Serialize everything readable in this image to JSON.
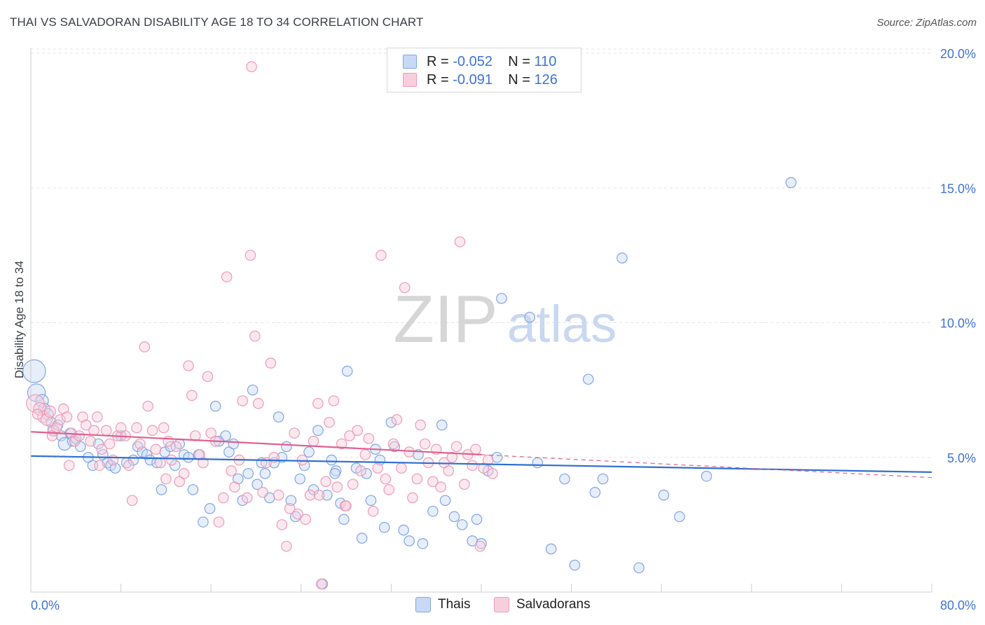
{
  "chart_data": {
    "type": "scatter",
    "title": "THAI VS SALVADORAN DISABILITY AGE 18 TO 34 CORRELATION CHART",
    "source": "Source: ZipAtlas.com",
    "ylabel": "Disability Age 18 to 34",
    "xlim": [
      0,
      80
    ],
    "ylim": [
      0,
      20
    ],
    "x_tick_labels": [
      "0.0%",
      "80.0%"
    ],
    "y_ticks": [
      5,
      10,
      15,
      20
    ],
    "y_tick_labels": [
      "5.0%",
      "10.0%",
      "15.0%",
      "20.0%"
    ],
    "watermark": {
      "zip": "ZIP",
      "atlas": "atlas"
    },
    "grid": true,
    "legend_top": [
      {
        "r_label": "R =",
        "r_value": "-0.052",
        "n_label": "N =",
        "n_value": "110"
      },
      {
        "r_label": "R =",
        "r_value": "-0.091",
        "n_label": "N =",
        "n_value": "126"
      }
    ],
    "series": [
      {
        "name": "Thais",
        "color": "#7ea6e6",
        "fill": "#c9d9f5",
        "line_color": "#2f6fd0",
        "trend": {
          "x": [
            0,
            80
          ],
          "y": [
            5.05,
            4.45
          ]
        },
        "points": [
          [
            0.3,
            8.2,
            1.8
          ],
          [
            0.5,
            7.4,
            1.4
          ],
          [
            1.0,
            7.1,
            1.0
          ],
          [
            1.2,
            6.8,
            0.9
          ],
          [
            1.5,
            6.6,
            0.9
          ],
          [
            1.8,
            6.3,
            0.8
          ],
          [
            2.0,
            6.0,
            0.8
          ],
          [
            2.4,
            6.2,
            0.8
          ],
          [
            2.7,
            5.8,
            0.8
          ],
          [
            3.0,
            5.5,
            1.0
          ],
          [
            3.5,
            5.9,
            0.8
          ],
          [
            3.7,
            5.6,
            0.8
          ],
          [
            4.0,
            5.7,
            0.8
          ],
          [
            4.4,
            5.4,
            0.8
          ],
          [
            5.1,
            5.0,
            0.8
          ],
          [
            5.5,
            4.7,
            0.8
          ],
          [
            6.0,
            5.5,
            0.8
          ],
          [
            6.4,
            5.1,
            0.8
          ],
          [
            6.8,
            4.8,
            0.8
          ],
          [
            7.1,
            4.7,
            0.8
          ],
          [
            7.5,
            4.6,
            0.8
          ],
          [
            8.0,
            5.8,
            0.8
          ],
          [
            8.5,
            4.8,
            0.8
          ],
          [
            9.1,
            4.9,
            0.8
          ],
          [
            9.5,
            5.4,
            0.8
          ],
          [
            9.9,
            5.2,
            0.8
          ],
          [
            10.3,
            5.1,
            0.8
          ],
          [
            10.6,
            4.9,
            0.8
          ],
          [
            11.2,
            4.8,
            0.8
          ],
          [
            11.6,
            3.8,
            0.8
          ],
          [
            11.9,
            5.2,
            0.8
          ],
          [
            12.4,
            5.4,
            0.8
          ],
          [
            12.8,
            4.7,
            0.8
          ],
          [
            13.2,
            5.5,
            0.8
          ],
          [
            13.6,
            5.1,
            0.8
          ],
          [
            14.0,
            5.0,
            0.8
          ],
          [
            14.4,
            3.8,
            0.8
          ],
          [
            14.9,
            5.1,
            0.8
          ],
          [
            15.3,
            2.6,
            0.8
          ],
          [
            15.9,
            3.1,
            0.8
          ],
          [
            16.4,
            6.9,
            0.8
          ],
          [
            16.7,
            5.6,
            0.8
          ],
          [
            17.3,
            5.8,
            0.8
          ],
          [
            17.6,
            5.2,
            0.8
          ],
          [
            18.0,
            5.5,
            0.8
          ],
          [
            18.4,
            4.2,
            0.8
          ],
          [
            18.8,
            3.4,
            0.8
          ],
          [
            19.3,
            4.4,
            0.8
          ],
          [
            19.7,
            7.5,
            0.8
          ],
          [
            20.1,
            4.0,
            0.8
          ],
          [
            20.5,
            4.8,
            0.8
          ],
          [
            20.8,
            4.4,
            0.8
          ],
          [
            21.2,
            3.5,
            0.8
          ],
          [
            21.6,
            4.8,
            0.8
          ],
          [
            22.0,
            6.5,
            0.8
          ],
          [
            22.3,
            5.0,
            0.8
          ],
          [
            22.7,
            5.4,
            0.8
          ],
          [
            23.1,
            3.4,
            0.8
          ],
          [
            23.5,
            2.8,
            0.8
          ],
          [
            23.9,
            4.2,
            0.8
          ],
          [
            24.3,
            4.7,
            0.8
          ],
          [
            24.7,
            5.2,
            0.8
          ],
          [
            25.1,
            3.8,
            0.8
          ],
          [
            25.5,
            6.0,
            0.8
          ],
          [
            25.9,
            0.3,
            0.8
          ],
          [
            26.3,
            3.6,
            0.8
          ],
          [
            26.7,
            4.9,
            0.8
          ],
          [
            27.1,
            4.5,
            0.8
          ],
          [
            27.5,
            3.3,
            0.8
          ],
          [
            27.8,
            2.7,
            0.8
          ],
          [
            28.1,
            8.2,
            0.8
          ],
          [
            28.9,
            4.6,
            0.8
          ],
          [
            29.4,
            2.0,
            0.8
          ],
          [
            29.8,
            4.4,
            0.8
          ],
          [
            30.2,
            3.4,
            0.8
          ],
          [
            30.6,
            5.3,
            0.8
          ],
          [
            31.0,
            4.9,
            0.8
          ],
          [
            31.4,
            2.4,
            0.8
          ],
          [
            32.0,
            6.3,
            0.8
          ],
          [
            32.3,
            5.4,
            0.8
          ],
          [
            33.1,
            2.3,
            0.8
          ],
          [
            33.6,
            1.9,
            0.8
          ],
          [
            34.4,
            5.1,
            0.8
          ],
          [
            34.8,
            1.8,
            0.8
          ],
          [
            35.7,
            3.0,
            0.8
          ],
          [
            36.5,
            6.2,
            0.8
          ],
          [
            37.6,
            2.8,
            0.8
          ],
          [
            38.3,
            2.5,
            0.8
          ],
          [
            39.2,
            1.9,
            0.8
          ],
          [
            39.6,
            2.7,
            0.8
          ],
          [
            40.0,
            1.8,
            0.8
          ],
          [
            40.6,
            4.5,
            0.8
          ],
          [
            41.4,
            5.0,
            0.8
          ],
          [
            41.8,
            10.9,
            0.8
          ],
          [
            44.3,
            10.2,
            0.8
          ],
          [
            45.0,
            4.8,
            0.8
          ],
          [
            46.2,
            1.6,
            0.8
          ],
          [
            47.4,
            4.2,
            0.8
          ],
          [
            48.3,
            1.0,
            0.8
          ],
          [
            49.5,
            7.9,
            0.8
          ],
          [
            50.1,
            3.7,
            0.8
          ],
          [
            52.5,
            12.4,
            0.8
          ],
          [
            54.0,
            0.9,
            0.8
          ],
          [
            56.2,
            3.6,
            0.8
          ],
          [
            57.6,
            2.8,
            0.8
          ],
          [
            67.5,
            15.2,
            0.8
          ],
          [
            60.0,
            4.3,
            0.8
          ],
          [
            50.8,
            4.2,
            0.8
          ],
          [
            36.8,
            3.4,
            0.8
          ],
          [
            27.0,
            4.4,
            0.8
          ]
        ]
      },
      {
        "name": "Salvadorans",
        "color": "#ef9ab6",
        "fill": "#f7cfdc",
        "line_color": "#e0608e",
        "trend": {
          "x": [
            0,
            40
          ],
          "y": [
            5.95,
            5.1
          ]
        },
        "points": [
          [
            0.4,
            7.0,
            1.4
          ],
          [
            0.8,
            6.8,
            1.0
          ],
          [
            1.1,
            6.5,
            0.9
          ],
          [
            1.4,
            6.4,
            0.9
          ],
          [
            1.7,
            6.7,
            0.9
          ],
          [
            2.0,
            6.0,
            0.9
          ],
          [
            2.3,
            6.1,
            0.8
          ],
          [
            2.6,
            6.4,
            0.8
          ],
          [
            2.9,
            6.8,
            0.8
          ],
          [
            3.2,
            6.5,
            0.8
          ],
          [
            3.6,
            5.9,
            0.8
          ],
          [
            3.9,
            5.6,
            0.8
          ],
          [
            4.3,
            5.8,
            0.8
          ],
          [
            4.6,
            6.5,
            0.8
          ],
          [
            4.9,
            6.2,
            0.8
          ],
          [
            5.3,
            5.6,
            0.8
          ],
          [
            5.6,
            6.0,
            0.8
          ],
          [
            5.9,
            6.5,
            0.8
          ],
          [
            6.3,
            5.3,
            0.8
          ],
          [
            6.7,
            6.0,
            0.8
          ],
          [
            7.0,
            5.5,
            0.8
          ],
          [
            7.3,
            4.9,
            0.8
          ],
          [
            7.7,
            5.8,
            0.8
          ],
          [
            8.0,
            6.1,
            0.8
          ],
          [
            8.4,
            5.8,
            0.8
          ],
          [
            8.7,
            4.7,
            0.8
          ],
          [
            9.0,
            3.4,
            0.8
          ],
          [
            9.4,
            6.1,
            0.8
          ],
          [
            9.7,
            5.5,
            0.8
          ],
          [
            10.1,
            9.1,
            0.8
          ],
          [
            10.4,
            6.9,
            0.8
          ],
          [
            10.8,
            6.0,
            0.8
          ],
          [
            11.1,
            5.3,
            0.8
          ],
          [
            11.5,
            4.8,
            0.8
          ],
          [
            11.8,
            6.1,
            0.8
          ],
          [
            12.2,
            5.6,
            0.8
          ],
          [
            12.5,
            4.9,
            0.8
          ],
          [
            12.9,
            5.4,
            0.8
          ],
          [
            13.2,
            4.1,
            0.8
          ],
          [
            13.6,
            4.4,
            0.8
          ],
          [
            14.0,
            8.4,
            0.8
          ],
          [
            14.3,
            7.3,
            0.8
          ],
          [
            14.6,
            5.8,
            0.8
          ],
          [
            15.0,
            5.1,
            0.8
          ],
          [
            15.3,
            4.8,
            0.8
          ],
          [
            15.7,
            8.0,
            0.8
          ],
          [
            16.0,
            5.9,
            0.8
          ],
          [
            16.4,
            5.6,
            0.8
          ],
          [
            16.7,
            2.6,
            0.8
          ],
          [
            17.1,
            3.5,
            0.8
          ],
          [
            17.4,
            11.7,
            0.8
          ],
          [
            17.8,
            4.5,
            0.8
          ],
          [
            18.1,
            3.9,
            0.8
          ],
          [
            18.5,
            4.9,
            0.8
          ],
          [
            18.8,
            7.1,
            0.8
          ],
          [
            19.2,
            3.5,
            0.8
          ],
          [
            19.5,
            12.5,
            0.8
          ],
          [
            19.6,
            19.5,
            0.8
          ],
          [
            19.9,
            9.5,
            0.8
          ],
          [
            20.2,
            7.0,
            0.8
          ],
          [
            20.6,
            3.7,
            0.8
          ],
          [
            20.9,
            4.8,
            0.8
          ],
          [
            21.3,
            8.5,
            0.8
          ],
          [
            21.6,
            5.0,
            0.8
          ],
          [
            22.0,
            3.6,
            0.8
          ],
          [
            22.3,
            2.5,
            0.8
          ],
          [
            22.7,
            1.7,
            0.8
          ],
          [
            23.0,
            3.1,
            0.8
          ],
          [
            23.4,
            5.9,
            0.8
          ],
          [
            23.7,
            2.9,
            0.8
          ],
          [
            24.1,
            4.9,
            0.8
          ],
          [
            24.4,
            2.7,
            0.8
          ],
          [
            24.8,
            3.6,
            0.8
          ],
          [
            25.1,
            5.6,
            0.8
          ],
          [
            25.5,
            7.0,
            0.8
          ],
          [
            25.8,
            0.3,
            0.8
          ],
          [
            26.2,
            4.1,
            0.8
          ],
          [
            26.5,
            6.3,
            0.8
          ],
          [
            26.9,
            7.1,
            0.8
          ],
          [
            27.2,
            3.9,
            0.8
          ],
          [
            27.6,
            5.5,
            0.8
          ],
          [
            27.9,
            3.2,
            0.8
          ],
          [
            28.3,
            5.8,
            0.8
          ],
          [
            28.6,
            4.0,
            0.8
          ],
          [
            29.0,
            6.0,
            0.8
          ],
          [
            29.3,
            4.5,
            0.8
          ],
          [
            29.7,
            5.1,
            0.8
          ],
          [
            30.0,
            5.7,
            0.8
          ],
          [
            30.4,
            3.0,
            0.8
          ],
          [
            30.8,
            4.6,
            0.8
          ],
          [
            31.1,
            12.5,
            0.8
          ],
          [
            31.5,
            4.2,
            0.8
          ],
          [
            31.8,
            3.8,
            0.8
          ],
          [
            32.2,
            5.5,
            0.8
          ],
          [
            32.5,
            6.4,
            0.8
          ],
          [
            32.9,
            4.6,
            0.8
          ],
          [
            33.2,
            11.3,
            0.8
          ],
          [
            33.6,
            5.2,
            0.8
          ],
          [
            33.9,
            3.5,
            0.8
          ],
          [
            34.3,
            4.2,
            0.8
          ],
          [
            34.6,
            6.2,
            0.8
          ],
          [
            35.0,
            5.5,
            0.8
          ],
          [
            35.3,
            4.8,
            0.8
          ],
          [
            35.7,
            4.1,
            0.8
          ],
          [
            36.0,
            5.3,
            0.8
          ],
          [
            36.4,
            3.9,
            0.8
          ],
          [
            36.7,
            4.8,
            0.8
          ],
          [
            37.1,
            4.5,
            0.8
          ],
          [
            37.4,
            5.0,
            0.8
          ],
          [
            37.8,
            5.4,
            0.8
          ],
          [
            38.1,
            13.0,
            0.8
          ],
          [
            38.5,
            4.0,
            0.8
          ],
          [
            38.8,
            5.1,
            0.8
          ],
          [
            39.2,
            4.7,
            0.8
          ],
          [
            39.5,
            5.3,
            0.8
          ],
          [
            39.9,
            1.7,
            0.8
          ],
          [
            40.2,
            4.6,
            0.8
          ],
          [
            40.6,
            4.9,
            0.8
          ],
          [
            41.0,
            4.4,
            0.8
          ],
          [
            0.6,
            6.6,
            0.8
          ],
          [
            1.9,
            5.8,
            0.8
          ],
          [
            3.4,
            4.7,
            0.8
          ],
          [
            6.1,
            4.7,
            0.8
          ],
          [
            12.0,
            4.2,
            0.8
          ],
          [
            25.6,
            3.6,
            0.8
          ],
          [
            28.0,
            3.2,
            0.8
          ]
        ]
      }
    ]
  }
}
